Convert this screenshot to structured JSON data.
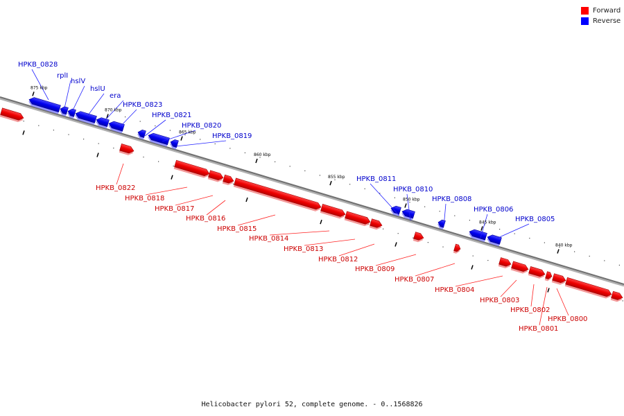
{
  "legend": {
    "forward": {
      "label": "Forward",
      "color": "#ff0000"
    },
    "reverse": {
      "label": "Reverse",
      "color": "#0000ff"
    }
  },
  "caption": "Helicobacter pylori 52, complete genome. - 0..1568826",
  "backbone": {
    "ticks": [
      {
        "label": "875 kbp"
      },
      {
        "label": "870 kbp"
      },
      {
        "label": "865 kbp"
      },
      {
        "label": "860 kbp"
      },
      {
        "label": "855 kbp"
      },
      {
        "label": "850 kbp"
      },
      {
        "label": "845 kbp"
      },
      {
        "label": "840 kbp"
      }
    ]
  },
  "genes": {
    "reverse": [
      {
        "name": "HPKB_0828"
      },
      {
        "name": "rplI"
      },
      {
        "name": "hslV"
      },
      {
        "name": "hslU"
      },
      {
        "name": "era"
      },
      {
        "name": "HPKB_0823"
      },
      {
        "name": "HPKB_0821"
      },
      {
        "name": "HPKB_0820"
      },
      {
        "name": "HPKB_0819"
      },
      {
        "name": "HPKB_0811"
      },
      {
        "name": "HPKB_0810"
      },
      {
        "name": "HPKB_0808"
      },
      {
        "name": "HPKB_0806"
      },
      {
        "name": "HPKB_0805"
      }
    ],
    "forward": [
      {
        "name": "HPKB_0822"
      },
      {
        "name": "HPKB_0818"
      },
      {
        "name": "HPKB_0817"
      },
      {
        "name": "HPKB_0816"
      },
      {
        "name": "HPKB_0815"
      },
      {
        "name": "HPKB_0814"
      },
      {
        "name": "HPKB_0813"
      },
      {
        "name": "HPKB_0812"
      },
      {
        "name": "HPKB_0809"
      },
      {
        "name": "HPKB_0807"
      },
      {
        "name": "HPKB_0804"
      },
      {
        "name": "HPKB_0803"
      },
      {
        "name": "HPKB_0802"
      },
      {
        "name": "HPKB_0801"
      },
      {
        "name": "HPKB_0800"
      }
    ]
  }
}
